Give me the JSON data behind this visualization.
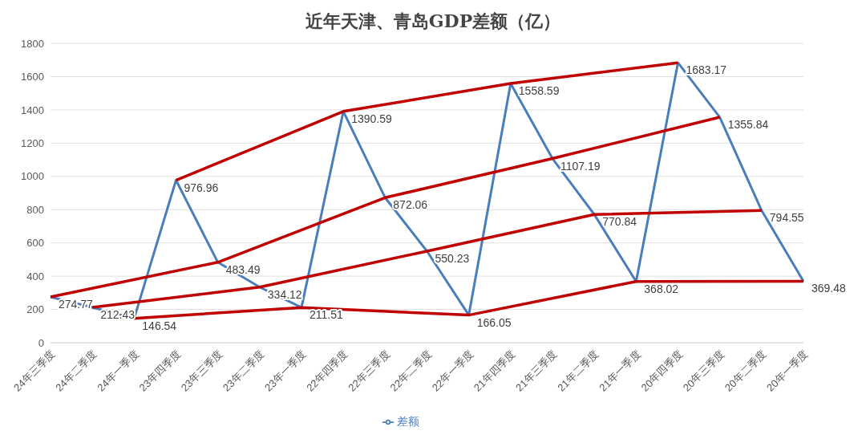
{
  "chart_data": {
    "type": "line",
    "title": "近年天津、青岛GDP差额（亿）",
    "categories": [
      "24年三季度",
      "24年二季度",
      "24年一季度",
      "23年四季度",
      "23年三季度",
      "23年二季度",
      "23年一季度",
      "22年四季度",
      "22年三季度",
      "22年二季度",
      "22年一季度",
      "21年四季度",
      "21年三季度",
      "21年二季度",
      "21年一季度",
      "20年四季度",
      "20年三季度",
      "20年二季度",
      "20年一季度"
    ],
    "series": [
      {
        "name": "差额",
        "color": "#4a7ebb",
        "values": [
          274.77,
          212.43,
          146.54,
          976.96,
          483.49,
          334.12,
          211.51,
          1390.59,
          872.06,
          550.23,
          166.05,
          1558.59,
          1107.19,
          770.84,
          368.02,
          1683.17,
          1355.84,
          794.55,
          369.48
        ],
        "value_labels": [
          "274.77",
          "212.43",
          "146.54",
          "976.96",
          "483.49",
          "334.12",
          "211.51",
          "1390.59",
          "872.06",
          "550.23",
          "166.05",
          "1558.59",
          "1107.19",
          "770.84",
          "368.02",
          "1683.17",
          "1355.84",
          "794.55",
          "369.48"
        ]
      },
      {
        "color": "#c00000",
        "values": [
          274.77,
          null,
          null,
          null,
          483.49,
          null,
          null,
          null,
          872.06,
          null,
          null,
          null,
          1107.19,
          null,
          null,
          null,
          1355.84,
          null,
          null
        ]
      },
      {
        "color": "#c00000",
        "values": [
          null,
          212.43,
          null,
          null,
          null,
          334.12,
          null,
          null,
          null,
          550.23,
          null,
          null,
          null,
          770.84,
          null,
          null,
          null,
          794.55,
          null
        ]
      },
      {
        "color": "#c00000",
        "values": [
          null,
          null,
          146.54,
          null,
          null,
          null,
          211.51,
          null,
          null,
          null,
          166.05,
          null,
          null,
          null,
          368.02,
          null,
          null,
          null,
          369.48
        ]
      },
      {
        "color": "#c00000",
        "values": [
          null,
          null,
          null,
          976.96,
          null,
          null,
          null,
          1390.59,
          null,
          null,
          null,
          1558.59,
          null,
          null,
          null,
          1683.17,
          null,
          null,
          null
        ]
      }
    ],
    "ylim": [
      0,
      1800
    ],
    "yticks": [
      0,
      200,
      400,
      600,
      800,
      1000,
      1200,
      1400,
      1600,
      1800
    ],
    "grid": "y",
    "legend": "bottom",
    "marker": "none",
    "line_style": "solid"
  }
}
